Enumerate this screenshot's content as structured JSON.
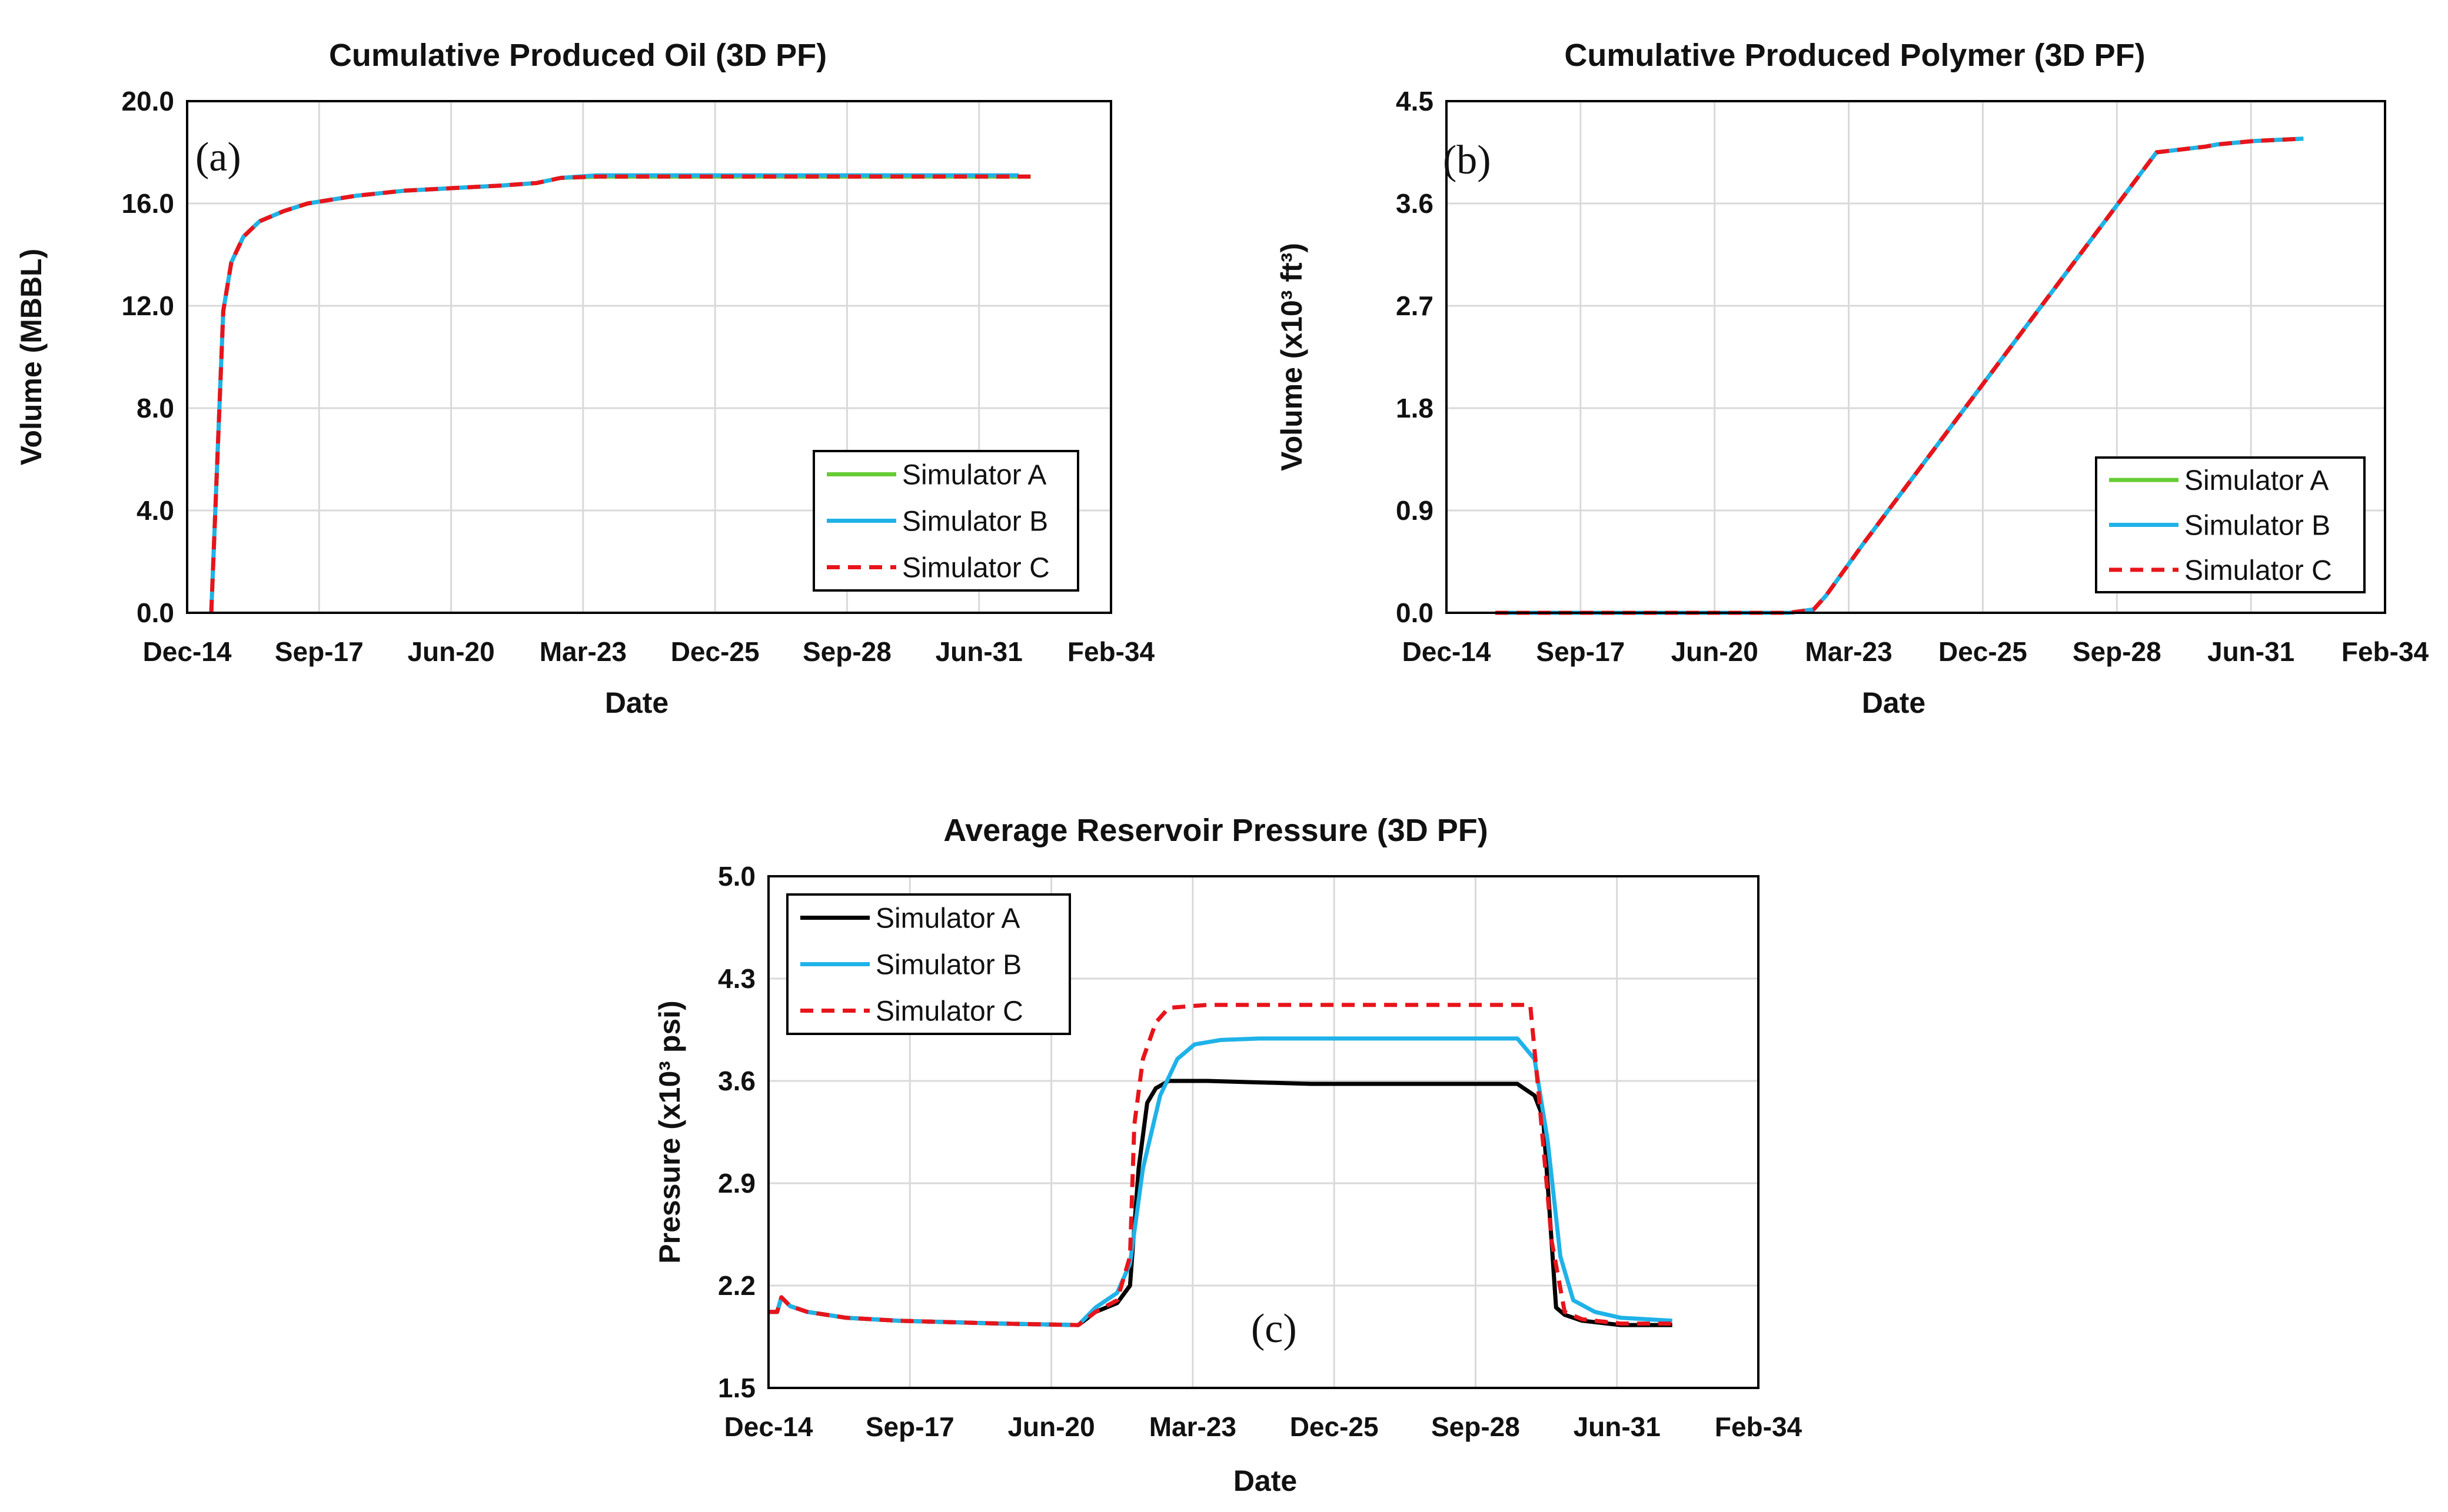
{
  "colors": {
    "simulator_a_green": "#66cc33",
    "simulator_a_black": "#000000",
    "simulator_b": "#1fb2e8",
    "simulator_c": "#e8141b",
    "grid": "#d9d9d9",
    "frame": "#000000"
  },
  "chart_data": [
    {
      "type": "line",
      "panel_tag": "(a)",
      "title": "Cumulative Produced Oil (3D PF)",
      "xlabel": "Date",
      "ylabel": "Volume (MBBL)",
      "x_ticks": [
        "Dec-14",
        "Sep-17",
        "Jun-20",
        "Mar-23",
        "Dec-25",
        "Sep-28",
        "Jun-31",
        "Feb-34"
      ],
      "xlim": [
        "2014-12",
        "2034-02"
      ],
      "ylim": [
        0,
        20
      ],
      "y_ticks": [
        "0.0",
        "4.0",
        "8.0",
        "12.0",
        "16.0",
        "20.0"
      ],
      "grid": true,
      "legend_position": "bottom-right",
      "series": [
        {
          "name": "Simulator A",
          "color": "#66cc33",
          "dash": "solid",
          "x": [
            "2015-06",
            "2015-09",
            "2015-11",
            "2016-02",
            "2016-06",
            "2016-12",
            "2017-06",
            "2018-06",
            "2019-06",
            "2020-06",
            "2021-06",
            "2022-03",
            "2022-09",
            "2023-06",
            "2025-01",
            "2028-01",
            "2031-06",
            "2032-06"
          ],
          "y": [
            0.0,
            11.8,
            13.7,
            14.7,
            15.3,
            15.7,
            16.0,
            16.3,
            16.5,
            16.6,
            16.7,
            16.8,
            17.0,
            17.05,
            17.05,
            17.05,
            17.05,
            17.05
          ]
        },
        {
          "name": "Simulator B",
          "color": "#1fb2e8",
          "dash": "solid",
          "x": [
            "2015-06",
            "2015-09",
            "2015-11",
            "2016-02",
            "2016-06",
            "2016-12",
            "2017-06",
            "2018-06",
            "2019-06",
            "2020-06",
            "2021-06",
            "2022-03",
            "2022-09",
            "2023-06",
            "2025-01",
            "2028-01",
            "2031-06",
            "2032-03"
          ],
          "y": [
            0.0,
            11.8,
            13.7,
            14.7,
            15.3,
            15.7,
            16.0,
            16.3,
            16.5,
            16.6,
            16.7,
            16.8,
            17.0,
            17.1,
            17.1,
            17.1,
            17.1,
            17.1
          ]
        },
        {
          "name": "Simulator C",
          "color": "#e8141b",
          "dash": "dashed",
          "x": [
            "2015-06",
            "2015-09",
            "2015-11",
            "2016-02",
            "2016-06",
            "2016-12",
            "2017-06",
            "2018-06",
            "2019-06",
            "2020-06",
            "2021-06",
            "2022-03",
            "2022-09",
            "2023-06",
            "2025-01",
            "2028-01",
            "2031-06",
            "2032-06"
          ],
          "y": [
            0.0,
            11.8,
            13.7,
            14.7,
            15.3,
            15.7,
            16.0,
            16.3,
            16.5,
            16.6,
            16.7,
            16.8,
            17.0,
            17.05,
            17.05,
            17.05,
            17.05,
            17.05
          ]
        }
      ]
    },
    {
      "type": "line",
      "panel_tag": "(b)",
      "title": "Cumulative Produced Polymer (3D PF)",
      "xlabel": "Date",
      "ylabel": "Volume (x10³ ft³)",
      "x_ticks": [
        "Dec-14",
        "Sep-17",
        "Jun-20",
        "Mar-23",
        "Dec-25",
        "Sep-28",
        "Jun-31",
        "Feb-34"
      ],
      "xlim": [
        "2014-12",
        "2034-02"
      ],
      "ylim": [
        0,
        4.5
      ],
      "y_ticks": [
        "0.0",
        "0.9",
        "1.8",
        "2.7",
        "3.6",
        "4.5"
      ],
      "grid": true,
      "legend_position": "bottom-right",
      "series": [
        {
          "name": "Simulator A",
          "color": "#66cc33",
          "dash": "solid",
          "x": [
            "2015-12",
            "2021-12",
            "2022-06",
            "2022-09",
            "2023-06",
            "2025-06",
            "2027-06",
            "2029-06",
            "2030-06",
            "2030-09",
            "2031-06",
            "2032-06"
          ],
          "y": [
            0.0,
            0.0,
            0.03,
            0.15,
            0.6,
            1.75,
            2.9,
            4.05,
            4.1,
            4.12,
            4.15,
            4.17
          ]
        },
        {
          "name": "Simulator B",
          "color": "#1fb2e8",
          "dash": "solid",
          "x": [
            "2015-12",
            "2021-12",
            "2022-06",
            "2022-09",
            "2023-06",
            "2025-06",
            "2027-06",
            "2029-06",
            "2030-06",
            "2030-09",
            "2031-06",
            "2032-06"
          ],
          "y": [
            0.0,
            0.0,
            0.03,
            0.15,
            0.6,
            1.75,
            2.9,
            4.05,
            4.1,
            4.12,
            4.15,
            4.17
          ]
        },
        {
          "name": "Simulator C",
          "color": "#e8141b",
          "dash": "dashed",
          "x": [
            "2015-12",
            "2021-12",
            "2022-06",
            "2022-09",
            "2023-06",
            "2025-06",
            "2027-06",
            "2029-06",
            "2030-06",
            "2030-09",
            "2031-06",
            "2032-06"
          ],
          "y": [
            0.0,
            0.0,
            0.03,
            0.15,
            0.6,
            1.75,
            2.9,
            4.05,
            4.1,
            4.12,
            4.15,
            4.17
          ]
        }
      ]
    },
    {
      "type": "line",
      "panel_tag": "(c)",
      "title": "Average Reservoir Pressure (3D PF)",
      "xlabel": "Date",
      "ylabel": "Pressure (x10³ psi)",
      "x_ticks": [
        "Dec-14",
        "Sep-17",
        "Jun-20",
        "Mar-23",
        "Dec-25",
        "Sep-28",
        "Jun-31",
        "Feb-34"
      ],
      "xlim": [
        "2014-12",
        "2034-02"
      ],
      "ylim": [
        1.5,
        5.0
      ],
      "y_ticks": [
        "1.5",
        "2.2",
        "2.9",
        "3.6",
        "4.3",
        "5.0"
      ],
      "grid": true,
      "legend_position": "top-left",
      "series": [
        {
          "name": "Simulator A",
          "color": "#000000",
          "dash": "solid",
          "x": [
            "2014-12",
            "2015-02",
            "2015-03",
            "2015-05",
            "2015-09",
            "2016-06",
            "2017-06",
            "2019-06",
            "2020-12",
            "2021-04",
            "2021-09",
            "2021-12",
            "2022-02",
            "2022-04",
            "2022-06",
            "2022-09",
            "2023-01",
            "2023-06",
            "2025-06",
            "2029-06",
            "2029-10",
            "2029-12",
            "2030-03",
            "2030-05",
            "2030-09",
            "2031-06",
            "2032-06"
          ],
          "y": [
            2.02,
            2.02,
            2.12,
            2.06,
            2.02,
            1.98,
            1.96,
            1.94,
            1.93,
            2.02,
            2.08,
            2.2,
            3.0,
            3.45,
            3.55,
            3.6,
            3.6,
            3.6,
            3.58,
            3.58,
            3.5,
            3.35,
            2.05,
            2.0,
            1.96,
            1.93,
            1.93
          ]
        },
        {
          "name": "Simulator B",
          "color": "#1fb2e8",
          "dash": "solid",
          "x": [
            "2014-12",
            "2015-02",
            "2015-03",
            "2015-05",
            "2015-09",
            "2016-06",
            "2017-06",
            "2019-06",
            "2020-12",
            "2021-04",
            "2021-09",
            "2021-12",
            "2022-03",
            "2022-07",
            "2022-11",
            "2023-03",
            "2023-09",
            "2024-06",
            "2026-06",
            "2029-06",
            "2029-10",
            "2030-01",
            "2030-04",
            "2030-07",
            "2030-12",
            "2031-06",
            "2032-06"
          ],
          "y": [
            2.02,
            2.02,
            2.12,
            2.06,
            2.02,
            1.98,
            1.96,
            1.94,
            1.93,
            2.05,
            2.15,
            2.35,
            3.0,
            3.5,
            3.75,
            3.85,
            3.88,
            3.89,
            3.89,
            3.89,
            3.75,
            3.2,
            2.4,
            2.1,
            2.02,
            1.98,
            1.96
          ]
        },
        {
          "name": "Simulator C",
          "color": "#e8141b",
          "dash": "dashed",
          "x": [
            "2014-12",
            "2015-02",
            "2015-03",
            "2015-05",
            "2015-09",
            "2016-06",
            "2017-06",
            "2019-06",
            "2020-12",
            "2021-04",
            "2021-09",
            "2021-12",
            "2022-01",
            "2022-03",
            "2022-06",
            "2022-09",
            "2023-06",
            "2026-06",
            "2029-06",
            "2029-09",
            "2029-11",
            "2030-02",
            "2030-05",
            "2030-09",
            "2031-06",
            "2032-06"
          ],
          "y": [
            2.02,
            2.02,
            2.12,
            2.06,
            2.02,
            1.98,
            1.96,
            1.94,
            1.93,
            2.02,
            2.1,
            2.4,
            3.3,
            3.75,
            4.0,
            4.1,
            4.12,
            4.12,
            4.12,
            4.12,
            3.5,
            2.5,
            2.02,
            1.97,
            1.94,
            1.94
          ]
        }
      ]
    }
  ]
}
